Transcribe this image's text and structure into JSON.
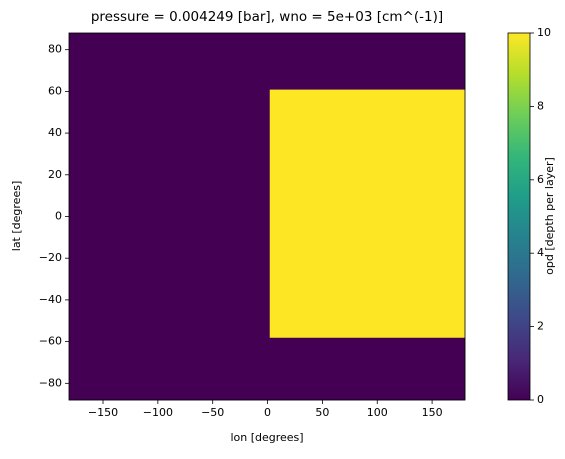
{
  "chart_data": {
    "type": "heatmap",
    "title": "pressure = 0.004249 [bar], wno = 5e+03 [cm^(-1)]",
    "xlabel": "lon [degrees]",
    "ylabel": "lat [degrees]",
    "x_edges": [
      -181,
      2,
      180
    ],
    "y_edges": [
      -88,
      -58,
      61,
      88
    ],
    "values": [
      [
        0,
        0
      ],
      [
        0,
        10
      ],
      [
        0,
        0
      ]
    ],
    "xlim": [
      -181,
      180
    ],
    "ylim": [
      -88,
      88
    ],
    "xticks": [
      {
        "value": -150,
        "label": "−150"
      },
      {
        "value": -100,
        "label": "−100"
      },
      {
        "value": -50,
        "label": "−50"
      },
      0,
      50,
      100,
      150
    ],
    "yticks": [
      {
        "value": -80,
        "label": "−80"
      },
      {
        "value": -60,
        "label": "−60"
      },
      {
        "value": -40,
        "label": "−40"
      },
      {
        "value": -20,
        "label": "−20"
      },
      0,
      20,
      40,
      60,
      80
    ],
    "colorbar": {
      "label": "opd [depth per layer]",
      "clim": [
        0,
        10
      ],
      "ticks": [
        0,
        2,
        4,
        6,
        8,
        10
      ],
      "colormap": [
        "#440154",
        "#482878",
        "#3e4989",
        "#31688e",
        "#26828e",
        "#1f9e89",
        "#35b779",
        "#6ece58",
        "#b5de2b",
        "#fde725"
      ]
    }
  }
}
